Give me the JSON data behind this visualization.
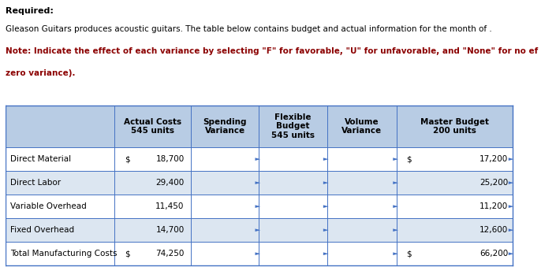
{
  "title_line1": "Required:",
  "title_line2": "Gleason Guitars produces acoustic guitars. The table below contains budget and actual information for the month of .",
  "title_line3": "Note: Indicate the effect of each variance by selecting \"F\" for favorable, \"U\" for unfavorable, and \"None\" for no ef",
  "title_line4": "zero variance).",
  "header_bg": "#b8cce4",
  "header_labels": [
    "Actual Costs\n545 units",
    "Spending\nVariance",
    "Flexible\nBudget\n545 units",
    "Volume\nVariance",
    "Master Budget\n200 units"
  ],
  "row_labels": [
    "Direct Material",
    "Direct Labor",
    "Variable Overhead",
    "Fixed Overhead",
    "Total Manufacturing Costs"
  ],
  "actual_dollar": [
    true,
    false,
    false,
    false,
    true
  ],
  "master_dollar": [
    true,
    false,
    false,
    false,
    true
  ],
  "actual_values": [
    "18,700",
    "29,400",
    "11,450",
    "14,700",
    "74,250"
  ],
  "master_values": [
    "17,200",
    "25,200",
    "11,200",
    "12,600",
    "66,200"
  ],
  "fig_bg": "#ffffff",
  "table_border_color": "#4472c4",
  "row_bg_white": "#ffffff",
  "row_bg_blue": "#dce6f1",
  "text_color_red": "#8B0000",
  "font_size_body": 7.5,
  "font_size_title": 8.0,
  "font_size_header": 7.5
}
